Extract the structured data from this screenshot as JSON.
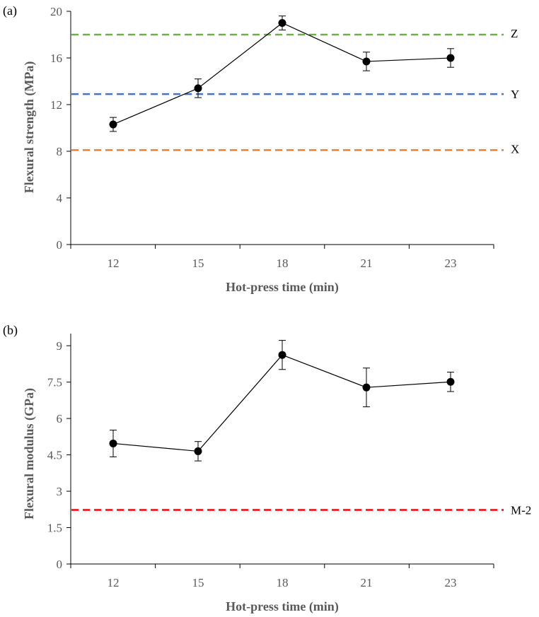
{
  "chart_data": [
    {
      "type": "line",
      "panel_label": "(a)",
      "xlabel": "Hot-press time (min)",
      "ylabel": "Flexural strength (MPa)",
      "categories": [
        "12",
        "15",
        "18",
        "21",
        "23"
      ],
      "ylim": [
        0,
        20
      ],
      "yticks": [
        "0",
        "4",
        "8",
        "12",
        "16",
        "20"
      ],
      "grid": false,
      "series": [
        {
          "name": "Flexural strength",
          "values": [
            10.3,
            13.4,
            19.0,
            15.7,
            16.0
          ],
          "errors": [
            0.6,
            0.8,
            0.6,
            0.8,
            0.8
          ],
          "color": "#000000"
        }
      ],
      "reference_lines": [
        {
          "label": "Z",
          "value": 18.0,
          "color": "#70AD47"
        },
        {
          "label": "Y",
          "value": 12.9,
          "color": "#4472C4"
        },
        {
          "label": "X",
          "value": 8.1,
          "color": "#ED7D31"
        }
      ]
    },
    {
      "type": "line",
      "panel_label": "(b)",
      "xlabel": "Hot-press time (min)",
      "ylabel": "Flexural modulus (GPa)",
      "categories": [
        "12",
        "15",
        "18",
        "21",
        "23"
      ],
      "ylim": [
        0,
        9.5
      ],
      "yticks": [
        "0",
        "1.5",
        "3",
        "4.5",
        "6",
        "7.5",
        "9"
      ],
      "grid": false,
      "series": [
        {
          "name": "Flexural modulus",
          "values": [
            4.97,
            4.65,
            8.62,
            7.28,
            7.51
          ],
          "errors": [
            0.55,
            0.4,
            0.6,
            0.8,
            0.4
          ],
          "color": "#000000"
        }
      ],
      "reference_lines": [
        {
          "label": "M-2",
          "value": 2.23,
          "color": "#FF0000"
        }
      ]
    }
  ]
}
